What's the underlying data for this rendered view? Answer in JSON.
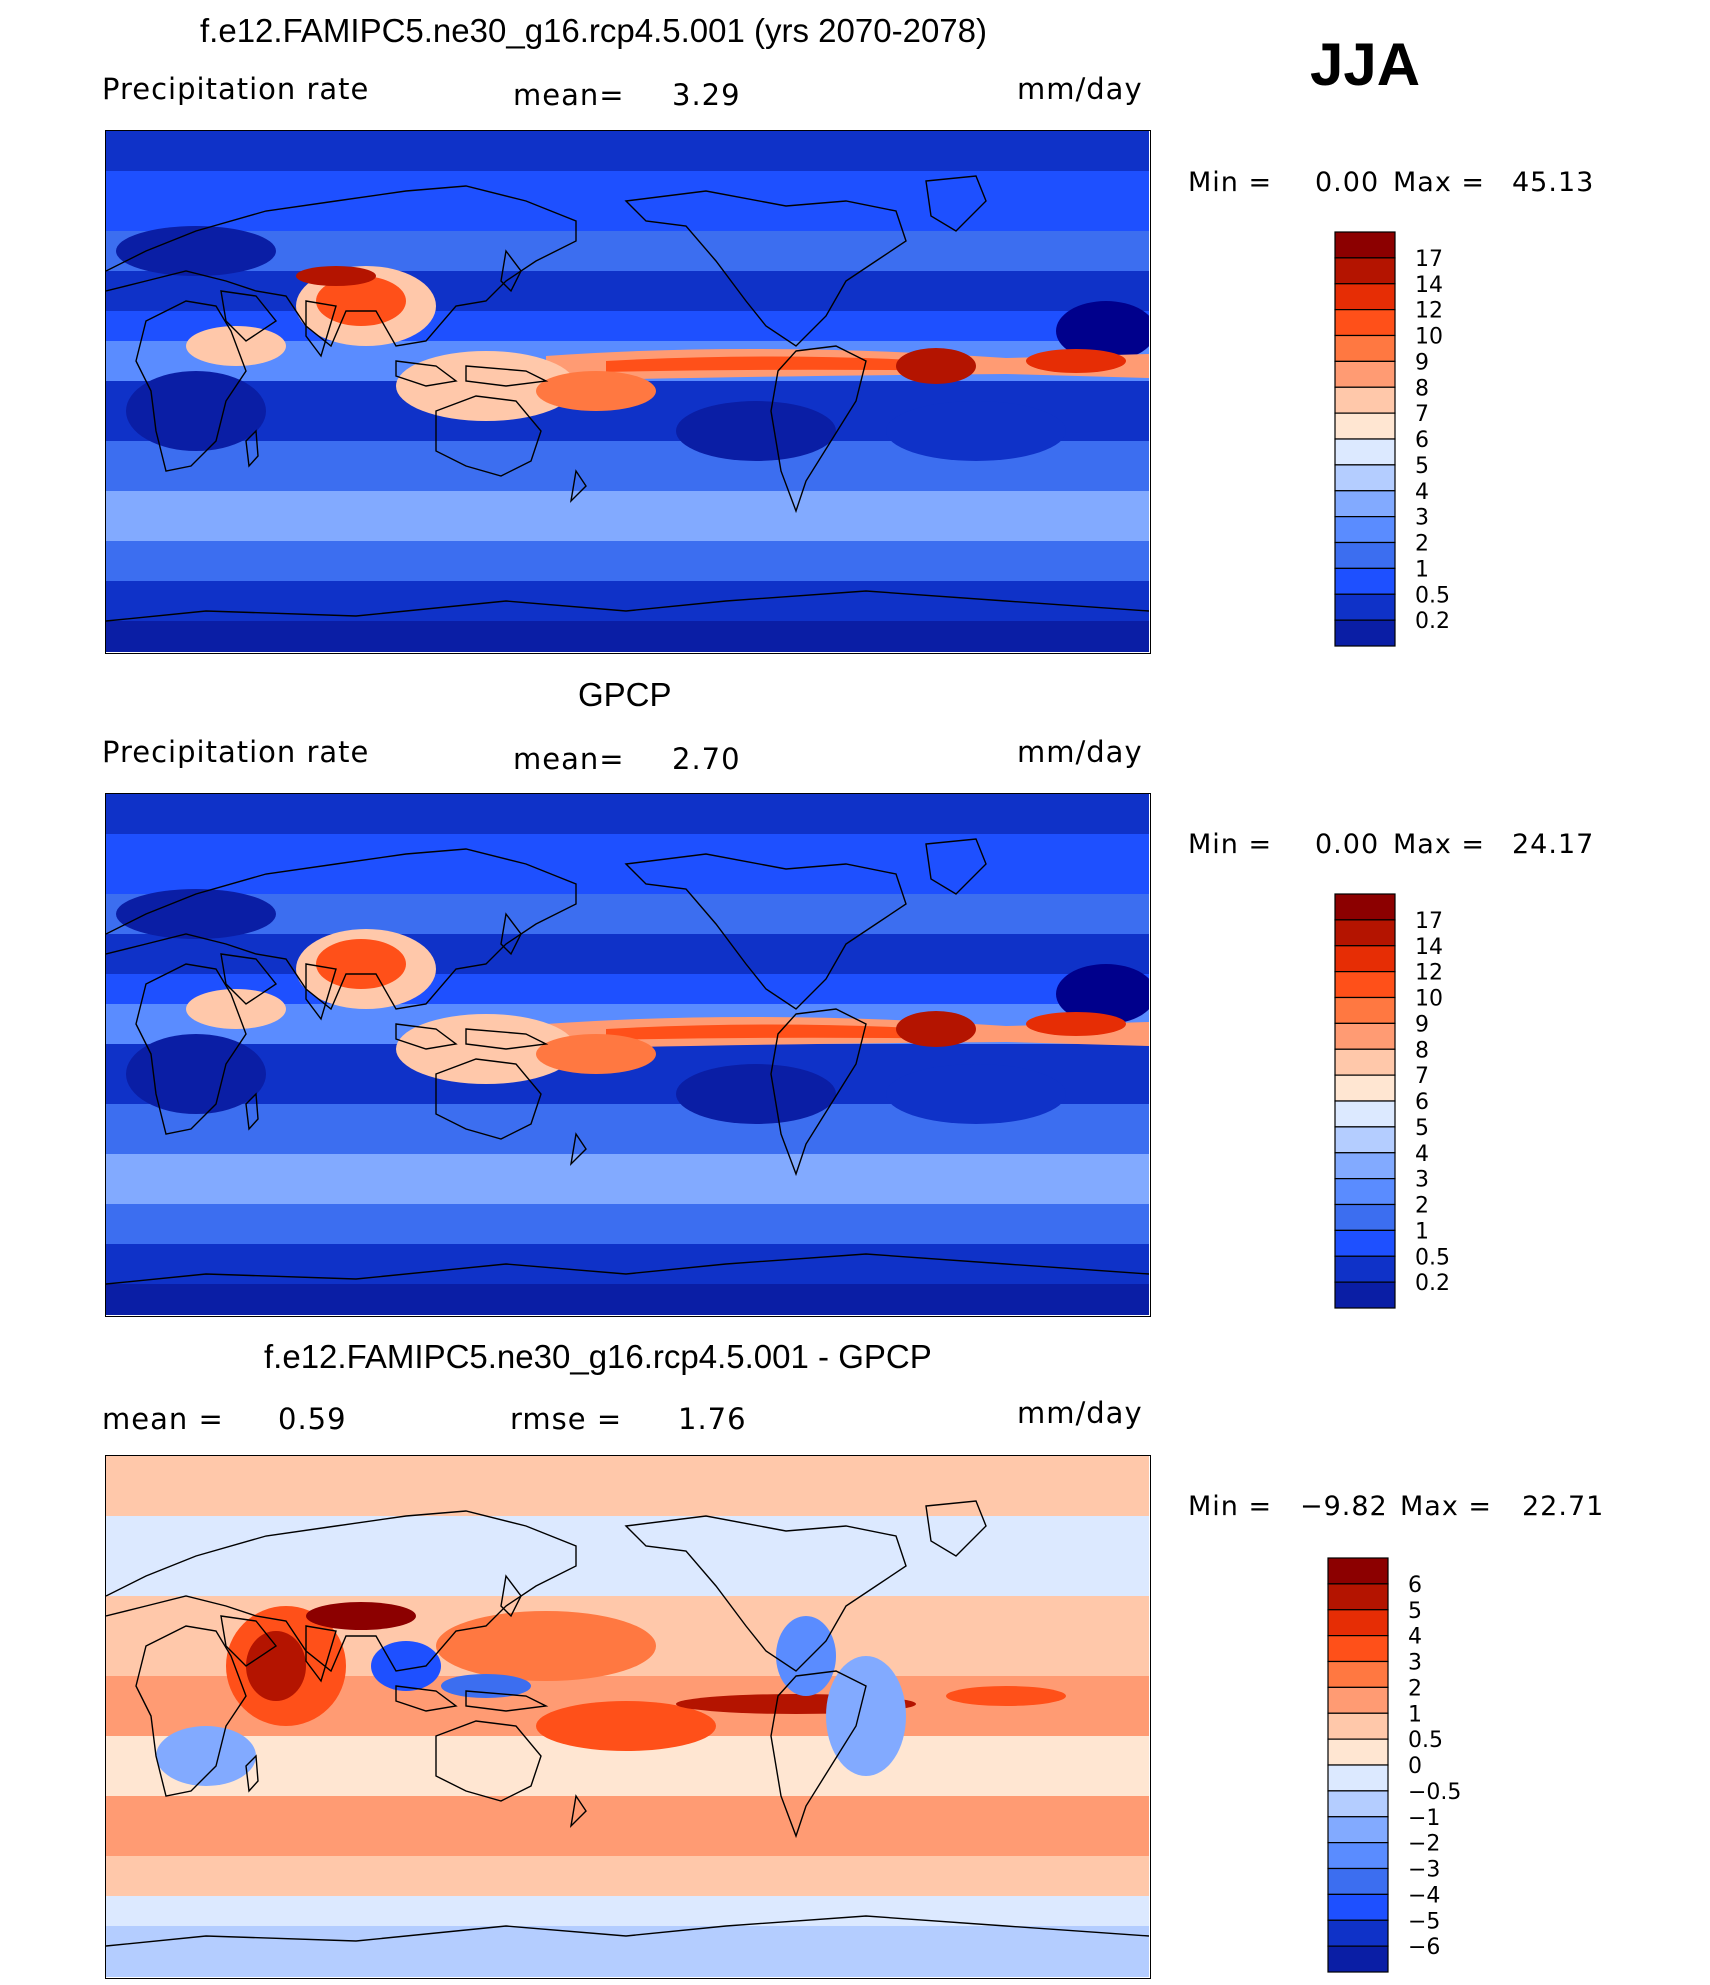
{
  "season": "JJA",
  "panels": [
    {
      "title": "f.e12.FAMIPC5.ne30_g16.rcp4.5.001 (yrs 2070-2078)",
      "left_label": "Precipitation  rate",
      "mean_label": "mean=",
      "mean_value": "3.29",
      "units": "mm/day",
      "min_label": "Min  =",
      "min_value": "0.00",
      "max_label": "Max  =",
      "max_value": "45.13",
      "colorbar_labels": [
        "17",
        "14",
        "12",
        "10",
        "9",
        "8",
        "7",
        "6",
        "5",
        "4",
        "3",
        "2",
        "1",
        "0.5",
        "0.2"
      ],
      "palette": "precip"
    },
    {
      "title": "GPCP",
      "left_label": "Precipitation  rate",
      "mean_label": "mean=",
      "mean_value": "2.70",
      "units": "mm/day",
      "min_label": "Min  =",
      "min_value": "0.00",
      "max_label": "Max  =",
      "max_value": "24.17",
      "colorbar_labels": [
        "17",
        "14",
        "12",
        "10",
        "9",
        "8",
        "7",
        "6",
        "5",
        "4",
        "3",
        "2",
        "1",
        "0.5",
        "0.2"
      ],
      "palette": "precip"
    },
    {
      "title": "f.e12.FAMIPC5.ne30_g16.rcp4.5.001 - GPCP",
      "mean_label": "mean  =",
      "mean_value": "0.59",
      "rmse_label": "rmse  =",
      "rmse_value": "1.76",
      "units": "mm/day",
      "min_label": "Min  =",
      "min_value": "−9.82",
      "max_label": "Max  =",
      "max_value": "22.71",
      "colorbar_labels": [
        "6",
        "5",
        "4",
        "3",
        "2",
        "1",
        "0.5",
        "0",
        "−0.5",
        "−1",
        "−2",
        "−3",
        "−4",
        "−5",
        "−6"
      ],
      "palette": "diff"
    }
  ],
  "colors": {
    "precip": [
      "#00008c",
      "#0a1ea5",
      "#0f32c8",
      "#1e50ff",
      "#3c6ef0",
      "#5a8cff",
      "#82aaff",
      "#b4cdff",
      "#dce9ff",
      "#ffe6d2",
      "#ffc8aa",
      "#ff9b73",
      "#ff7841",
      "#ff5019",
      "#e62d05",
      "#b41400",
      "#8c0000"
    ],
    "diff": [
      "#00008c",
      "#0a1ea5",
      "#0f32c8",
      "#1e50ff",
      "#3c6ef0",
      "#5a8cff",
      "#82aaff",
      "#b4cdff",
      "#dce9ff",
      "#ffe6d2",
      "#ffc8aa",
      "#ff9b73",
      "#ff7841",
      "#ff5019",
      "#e62d05",
      "#b41400",
      "#8c0000"
    ]
  }
}
